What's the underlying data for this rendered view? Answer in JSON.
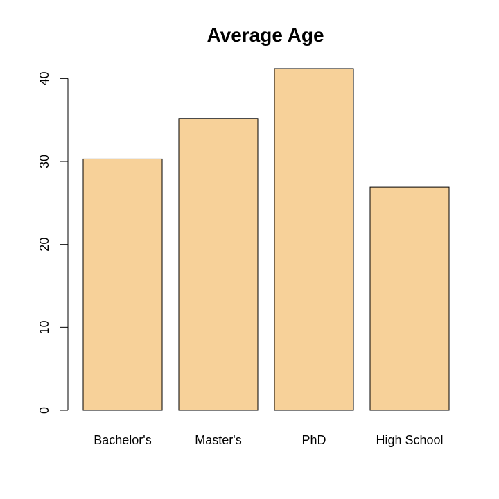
{
  "chart_data": {
    "type": "bar",
    "title": "Average Age",
    "xlabel": "",
    "ylabel": "",
    "categories": [
      "Bachelor's",
      "Master's",
      "PhD",
      "High School"
    ],
    "values": [
      30.3,
      35.2,
      41.2,
      26.9
    ],
    "yticks": [
      0,
      10,
      20,
      30,
      40
    ],
    "ylim": [
      0,
      41.2
    ],
    "grid": false,
    "bar_fill": "#F7D199",
    "bar_stroke": "#000000"
  }
}
